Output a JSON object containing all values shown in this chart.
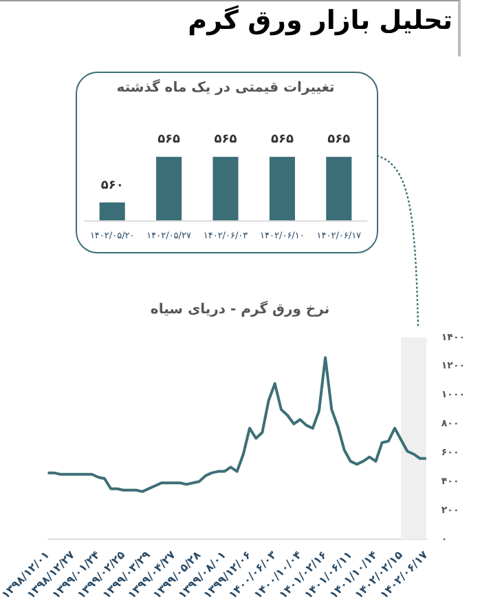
{
  "chart_data": [
    {
      "type": "bar",
      "title": "تغییرات قیمتی در یک ماه گذشته",
      "annotations": [
        "تحلیل بازار ورق گرم"
      ],
      "categories": [
        "۱۴۰۲/۰۵/۲۰",
        "۱۴۰۲/۰۵/۲۷",
        "۱۴۰۲/۰۶/۰۳",
        "۱۴۰۲/۰۶/۱۰",
        "۱۴۰۲/۰۶/۱۷"
      ],
      "values": [
        560,
        565,
        565,
        565,
        565
      ],
      "value_labels": [
        "۵۶۰",
        "۵۶۵",
        "۵۶۵",
        "۵۶۵",
        "۵۶۵"
      ],
      "color": "#3b6e77",
      "grid": false,
      "legend": false
    },
    {
      "type": "line",
      "title": "نرخ ورق گرم - دریای سیاه",
      "categories": [
        "۱۳۹۸/۱۲/۰۱",
        null,
        null,
        null,
        "۱۳۹۸/۱۲/۲۷",
        null,
        null,
        null,
        "۱۳۹۹/۰۱/۲۴",
        null,
        null,
        null,
        "۱۳۹۹/۰۲/۲۵",
        null,
        null,
        null,
        "۱۳۹۹/۰۳/۲۹",
        null,
        null,
        null,
        "۱۳۹۹/۰۴/۲۷",
        null,
        null,
        null,
        "۱۳۹۹/۰۵/۲۸",
        null,
        null,
        null,
        "۱۳۹۹/۰۸/۰۱",
        null,
        null,
        null,
        "۱۳۹۹/۱۲/۰۶",
        null,
        null,
        null,
        "۱۴۰۰/۰۶/۰۳",
        null,
        null,
        null,
        "۱۴۰۰/۱۰/۰۴",
        null,
        null,
        null,
        "۱۴۰۱/۰۲/۱۶",
        null,
        null,
        null,
        "۱۴۰۱/۰۶/۱۱",
        null,
        null,
        null,
        "۱۴۰۱/۱۰/۱۴",
        null,
        null,
        null,
        "۱۴۰۲/۰۲/۱۵",
        null,
        null,
        null,
        "۱۴۰۲/۰۶/۱۷"
      ],
      "values": [
        460,
        460,
        450,
        450,
        450,
        450,
        450,
        450,
        430,
        420,
        350,
        350,
        340,
        340,
        340,
        330,
        350,
        370,
        390,
        390,
        390,
        390,
        380,
        390,
        400,
        440,
        460,
        470,
        470,
        500,
        470,
        590,
        770,
        700,
        740,
        960,
        1080,
        900,
        860,
        800,
        830,
        790,
        770,
        890,
        1260,
        900,
        780,
        620,
        540,
        520,
        540,
        570,
        540,
        670,
        680,
        770,
        690,
        610,
        590,
        560,
        560
      ],
      "color": "#3d6f78",
      "marker": "none",
      "grid": false,
      "legend": false,
      "ylim": [
        0,
        1400
      ],
      "yticks": [
        {
          "value": 0,
          "label": "۰"
        },
        {
          "value": 200,
          "label": "۲۰۰"
        },
        {
          "value": 400,
          "label": "۴۰۰"
        },
        {
          "value": 600,
          "label": "۶۰۰"
        },
        {
          "value": 800,
          "label": "۸۰۰"
        },
        {
          "value": 1000,
          "label": "۱۰۰۰"
        },
        {
          "value": 1200,
          "label": "۱۲۰۰"
        },
        {
          "value": 1400,
          "label": "۱۴۰۰"
        }
      ],
      "bands": [
        {
          "axis": "x",
          "from": "۱۴۰۲/۰۲/۱۵",
          "to": "۱۴۰۲/۰۶/۱۷",
          "color": "#efefef"
        }
      ]
    }
  ]
}
